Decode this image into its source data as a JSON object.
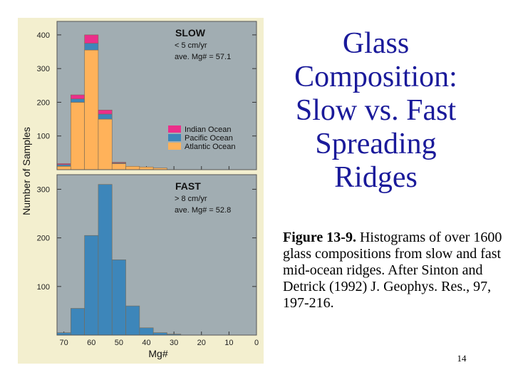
{
  "slide": {
    "title_lines": [
      "Glass",
      "Composition:",
      "Slow vs. Fast",
      "Spreading",
      "Ridges"
    ],
    "caption_label": "Figure 13-9.",
    "caption_text": " Histograms of over 1600 glass compositions from slow and fast mid-ocean ridges. After Sinton and Detrick (1992) J. Geophys. Res., 97, 197-216.",
    "slide_number": "14"
  },
  "colors": {
    "figure_background": "#f3efcf",
    "plot_background": "#a1adb2",
    "indian": "#ec2e8a",
    "pacific": "#3d86ba",
    "atlantic": "#ffb25a",
    "bar_stroke": "#7a6a55"
  },
  "chart_data": [
    {
      "type": "bar",
      "stacked": true,
      "title": "SLOW",
      "annotations": [
        "< 5 cm/yr",
        "ave. Mg# = 57.1"
      ],
      "xlabel": "",
      "ylabel": "Number of Samples",
      "xlim": [
        72.5,
        0
      ],
      "ylim": [
        0,
        440
      ],
      "yticks": [
        100,
        200,
        300,
        400
      ],
      "bin_edges": [
        72.5,
        67.5,
        62.5,
        57.5,
        52.5,
        47.5,
        42.5,
        37.5,
        32.5
      ],
      "legend_position": "right",
      "series": [
        {
          "name": "Atlantic Ocean",
          "values": [
            10,
            200,
            355,
            150,
            18,
            10,
            8,
            5
          ]
        },
        {
          "name": "Pacific Ocean",
          "values": [
            5,
            10,
            20,
            15,
            2,
            0,
            0,
            0
          ]
        },
        {
          "name": "Indian Ocean",
          "values": [
            3,
            12,
            25,
            12,
            2,
            0,
            0,
            0
          ]
        }
      ]
    },
    {
      "type": "bar",
      "title": "FAST",
      "annotations": [
        "> 8 cm/yr",
        "ave. Mg# = 52.8"
      ],
      "xlabel": "Mg#",
      "ylabel": "Number of Samples",
      "xlim": [
        72.5,
        0
      ],
      "ylim": [
        0,
        330
      ],
      "yticks": [
        100,
        200,
        300
      ],
      "xticks": [
        70,
        60,
        50,
        40,
        30,
        20,
        10,
        0
      ],
      "tick_labels": [
        "70",
        "60",
        "50",
        "40",
        "30",
        "20",
        "10",
        "0"
      ],
      "bin_edges": [
        72.5,
        67.5,
        62.5,
        57.5,
        52.5,
        47.5,
        42.5,
        37.5,
        32.5,
        27.5
      ],
      "series": [
        {
          "name": "Pacific Ocean",
          "values": [
            5,
            55,
            205,
            310,
            155,
            60,
            15,
            5,
            2
          ]
        }
      ]
    }
  ]
}
